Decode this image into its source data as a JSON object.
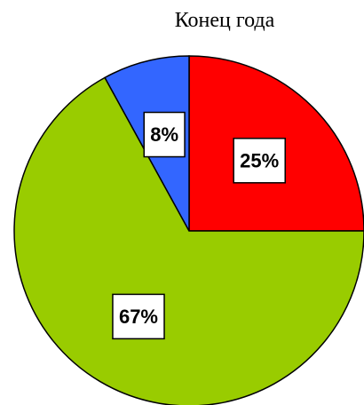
{
  "chart_data": {
    "type": "pie",
    "title": "Конец года",
    "values": [
      25,
      67,
      8
    ],
    "value_labels": [
      "25%",
      "67%",
      "8%"
    ],
    "colors": [
      "#ff0000",
      "#99cc00",
      "#3366ff"
    ]
  }
}
